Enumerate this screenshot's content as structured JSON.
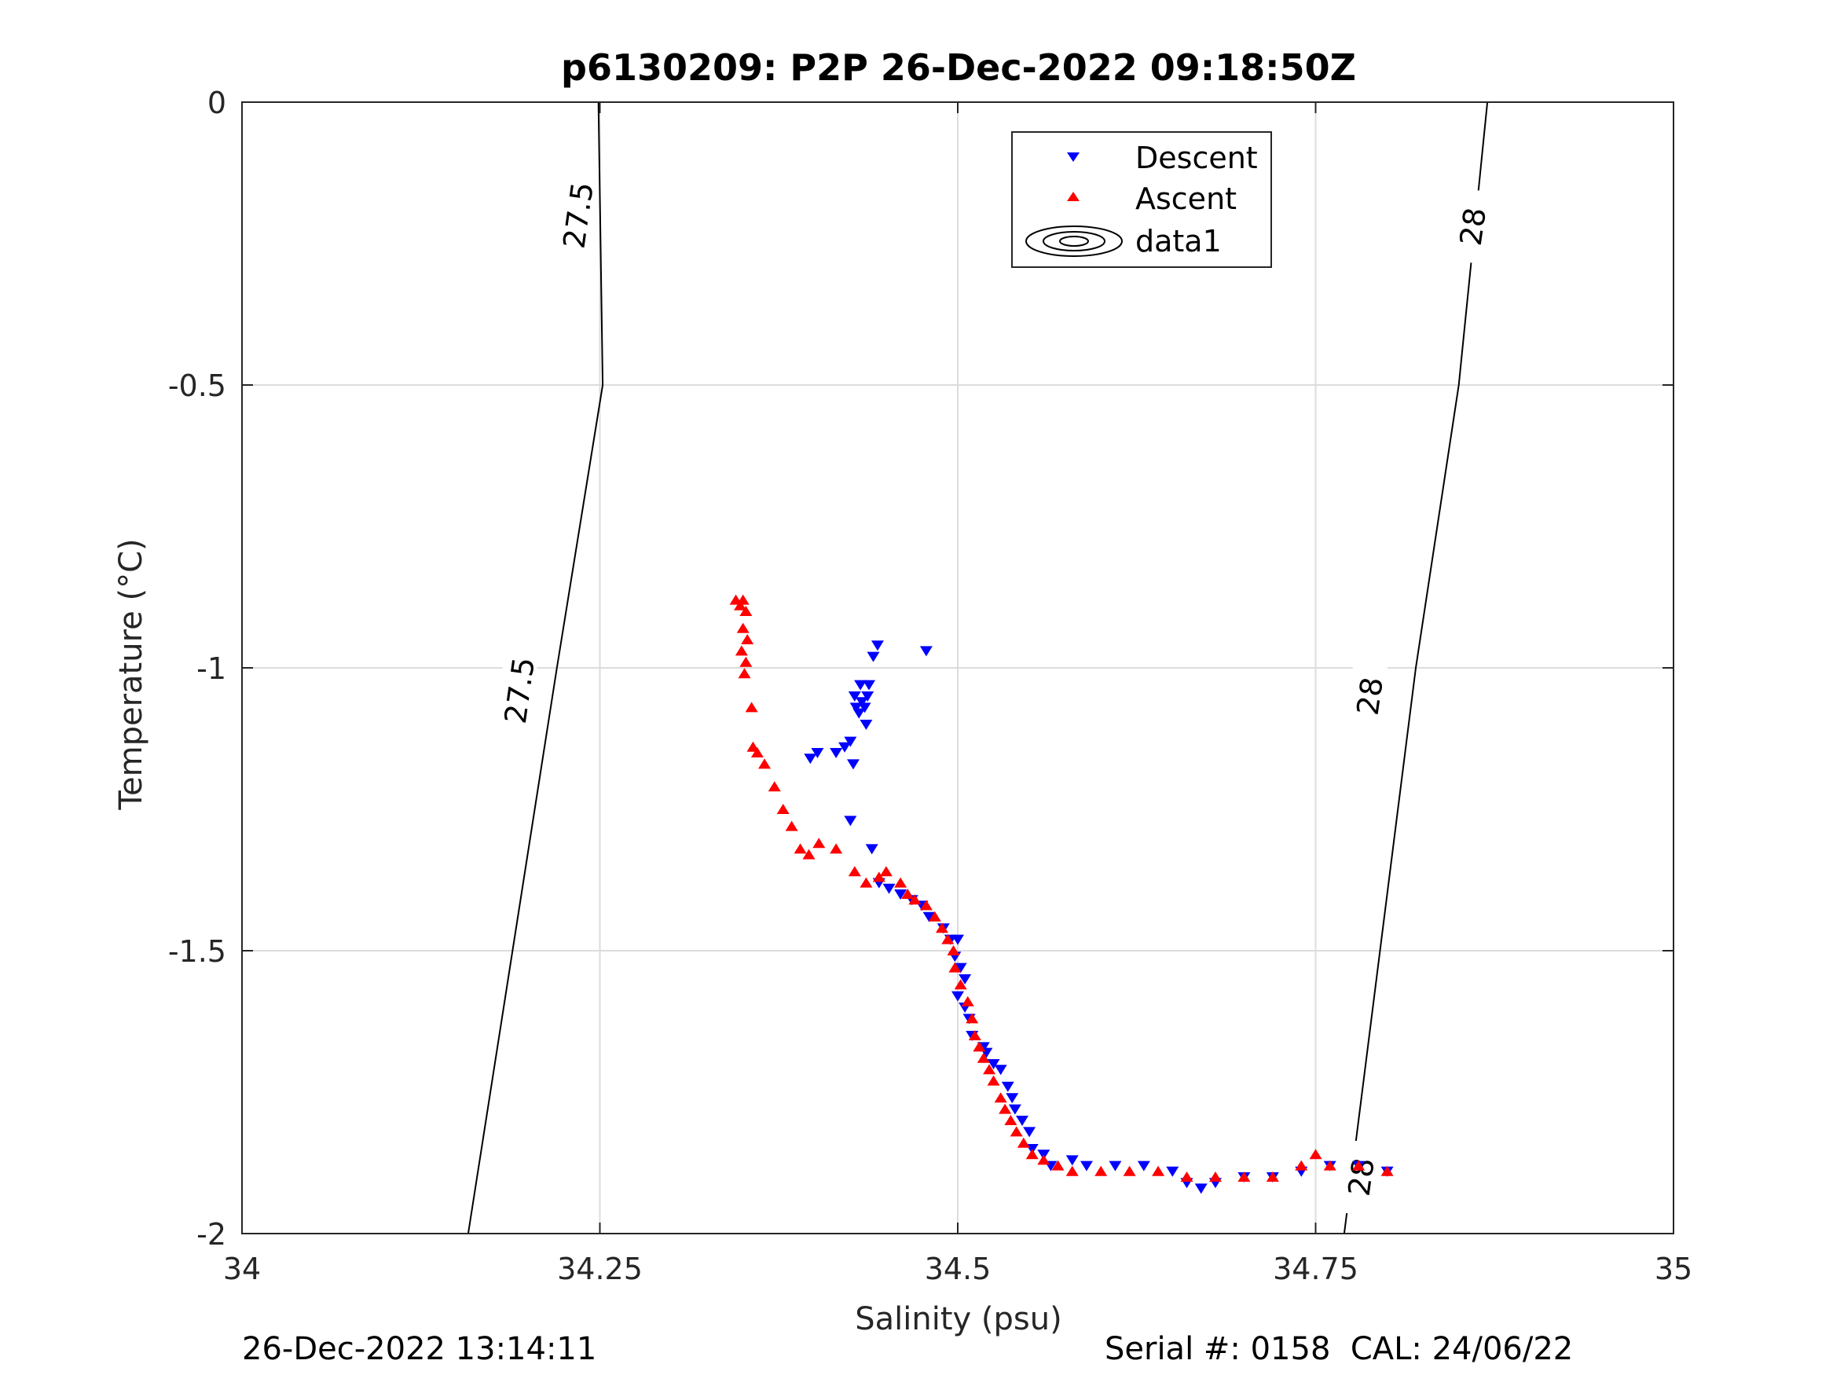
{
  "chart_data": {
    "type": "scatter",
    "title": "p6130209: P2P 26-Dec-2022 09:18:50Z",
    "xlabel": "Salinity (psu)",
    "ylabel": "Temperature (°C)",
    "xlim": [
      34,
      35
    ],
    "ylim": [
      -2,
      0
    ],
    "xticks": [
      34,
      34.25,
      34.5,
      34.75,
      35
    ],
    "xtick_labels": [
      "34",
      "34.25",
      "34.5",
      "34.75",
      "35"
    ],
    "yticks": [
      0,
      -0.5,
      -1,
      -1.5,
      -2
    ],
    "ytick_labels": [
      "0",
      "-0.5",
      "-1",
      "-1.5",
      "-2"
    ],
    "grid": true,
    "legend_position": "top-center",
    "legend": [
      "Descent",
      "Ascent",
      "data1"
    ],
    "colors": {
      "descent": "#0000ff",
      "ascent": "#ff0000",
      "contour": "#000000",
      "grid": "#dcdcdc"
    },
    "contours": [
      {
        "label": "27.5",
        "points": [
          [
            34.158,
            -2
          ],
          [
            34.22,
            -1
          ],
          [
            34.252,
            -0.5
          ],
          [
            34.249,
            0
          ]
        ],
        "label_positions": [
          [
            34.194,
            -1.04
          ],
          [
            34.235,
            -0.2
          ]
        ]
      },
      {
        "label": "28",
        "points": [
          [
            34.77,
            -2
          ],
          [
            34.82,
            -1
          ],
          [
            34.85,
            -0.5
          ],
          [
            34.87,
            0
          ]
        ],
        "label_positions": [
          [
            34.788,
            -1.05
          ],
          [
            34.86,
            -0.22
          ]
        ]
      },
      {
        "label": "28",
        "points": [],
        "label_positions": [
          [
            34.782,
            -1.9
          ]
        ]
      }
    ],
    "series": [
      {
        "name": "Descent",
        "marker": "triangle-down",
        "points": [
          [
            34.478,
            -0.97
          ],
          [
            34.444,
            -0.96
          ],
          [
            34.441,
            -0.98
          ],
          [
            34.432,
            -1.03
          ],
          [
            34.438,
            -1.03
          ],
          [
            34.428,
            -1.05
          ],
          [
            34.433,
            -1.06
          ],
          [
            34.437,
            -1.05
          ],
          [
            34.429,
            -1.07
          ],
          [
            34.431,
            -1.08
          ],
          [
            34.435,
            -1.07
          ],
          [
            34.436,
            -1.1
          ],
          [
            34.421,
            -1.14
          ],
          [
            34.425,
            -1.13
          ],
          [
            34.415,
            -1.15
          ],
          [
            34.402,
            -1.15
          ],
          [
            34.397,
            -1.16
          ],
          [
            34.427,
            -1.17
          ],
          [
            34.425,
            -1.27
          ],
          [
            34.44,
            -1.32
          ],
          [
            34.445,
            -1.38
          ],
          [
            34.452,
            -1.39
          ],
          [
            34.46,
            -1.4
          ],
          [
            34.468,
            -1.41
          ],
          [
            34.475,
            -1.42
          ],
          [
            34.48,
            -1.44
          ],
          [
            34.49,
            -1.46
          ],
          [
            34.495,
            -1.48
          ],
          [
            34.5,
            -1.48
          ],
          [
            34.498,
            -1.51
          ],
          [
            34.502,
            -1.53
          ],
          [
            34.505,
            -1.55
          ],
          [
            34.5,
            -1.58
          ],
          [
            34.505,
            -1.6
          ],
          [
            34.508,
            -1.62
          ],
          [
            34.51,
            -1.65
          ],
          [
            34.518,
            -1.67
          ],
          [
            34.52,
            -1.68
          ],
          [
            34.525,
            -1.7
          ],
          [
            34.53,
            -1.71
          ],
          [
            34.535,
            -1.74
          ],
          [
            34.538,
            -1.76
          ],
          [
            34.54,
            -1.78
          ],
          [
            34.545,
            -1.8
          ],
          [
            34.55,
            -1.82
          ],
          [
            34.552,
            -1.85
          ],
          [
            34.56,
            -1.86
          ],
          [
            34.565,
            -1.88
          ],
          [
            34.58,
            -1.87
          ],
          [
            34.59,
            -1.88
          ],
          [
            34.61,
            -1.88
          ],
          [
            34.63,
            -1.88
          ],
          [
            34.65,
            -1.89
          ],
          [
            34.66,
            -1.91
          ],
          [
            34.67,
            -1.92
          ],
          [
            34.68,
            -1.91
          ],
          [
            34.7,
            -1.9
          ],
          [
            34.72,
            -1.9
          ],
          [
            34.74,
            -1.89
          ],
          [
            34.76,
            -1.88
          ],
          [
            34.78,
            -1.88
          ],
          [
            34.8,
            -1.89
          ]
        ]
      },
      {
        "name": "Ascent",
        "marker": "triangle-up",
        "points": [
          [
            34.345,
            -0.88
          ],
          [
            34.35,
            -0.88
          ],
          [
            34.348,
            -0.89
          ],
          [
            34.352,
            -0.9
          ],
          [
            34.35,
            -0.93
          ],
          [
            34.353,
            -0.95
          ],
          [
            34.349,
            -0.97
          ],
          [
            34.352,
            -0.99
          ],
          [
            34.351,
            -1.01
          ],
          [
            34.356,
            -1.07
          ],
          [
            34.357,
            -1.14
          ],
          [
            34.36,
            -1.15
          ],
          [
            34.365,
            -1.17
          ],
          [
            34.372,
            -1.21
          ],
          [
            34.378,
            -1.25
          ],
          [
            34.384,
            -1.28
          ],
          [
            34.39,
            -1.32
          ],
          [
            34.396,
            -1.33
          ],
          [
            34.403,
            -1.31
          ],
          [
            34.415,
            -1.32
          ],
          [
            34.428,
            -1.36
          ],
          [
            34.436,
            -1.38
          ],
          [
            34.445,
            -1.37
          ],
          [
            34.45,
            -1.36
          ],
          [
            34.46,
            -1.38
          ],
          [
            34.465,
            -1.4
          ],
          [
            34.47,
            -1.41
          ],
          [
            34.478,
            -1.42
          ],
          [
            34.484,
            -1.44
          ],
          [
            34.489,
            -1.46
          ],
          [
            34.493,
            -1.48
          ],
          [
            34.497,
            -1.5
          ],
          [
            34.498,
            -1.53
          ],
          [
            34.502,
            -1.56
          ],
          [
            34.507,
            -1.59
          ],
          [
            34.51,
            -1.62
          ],
          [
            34.512,
            -1.65
          ],
          [
            34.515,
            -1.67
          ],
          [
            34.518,
            -1.69
          ],
          [
            34.522,
            -1.71
          ],
          [
            34.525,
            -1.73
          ],
          [
            34.53,
            -1.76
          ],
          [
            34.533,
            -1.78
          ],
          [
            34.537,
            -1.8
          ],
          [
            34.541,
            -1.82
          ],
          [
            34.546,
            -1.84
          ],
          [
            34.552,
            -1.86
          ],
          [
            34.56,
            -1.87
          ],
          [
            34.57,
            -1.88
          ],
          [
            34.58,
            -1.89
          ],
          [
            34.6,
            -1.89
          ],
          [
            34.62,
            -1.89
          ],
          [
            34.64,
            -1.89
          ],
          [
            34.66,
            -1.9
          ],
          [
            34.68,
            -1.9
          ],
          [
            34.7,
            -1.9
          ],
          [
            34.72,
            -1.9
          ],
          [
            34.74,
            -1.88
          ],
          [
            34.75,
            -1.86
          ],
          [
            34.76,
            -1.88
          ],
          [
            34.78,
            -1.88
          ],
          [
            34.8,
            -1.89
          ]
        ]
      }
    ]
  },
  "footer": {
    "left": "26-Dec-2022 13:14:11",
    "right": "Serial #: 0158  CAL: 24/06/22"
  }
}
